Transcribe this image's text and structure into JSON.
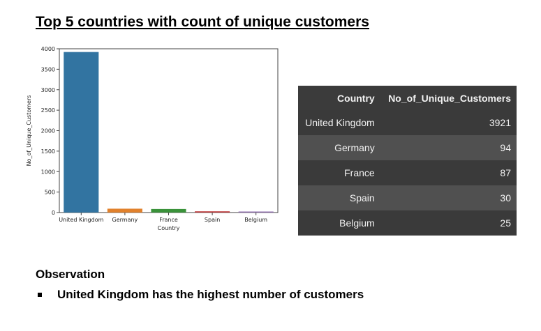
{
  "title": "Top 5 countries with count of unique customers",
  "chart_data": {
    "type": "bar",
    "categories": [
      "United Kingdom",
      "Germany",
      "France",
      "Spain",
      "Belgium"
    ],
    "values": [
      3921,
      94,
      87,
      30,
      25
    ],
    "colors": [
      "#3274a1",
      "#e1812c",
      "#3a923a",
      "#c03d3e",
      "#9372b2"
    ],
    "xlabel": "Country",
    "ylabel": "No_of_Unique_Customers",
    "ylim": [
      0,
      4000
    ],
    "yticks": [
      0,
      500,
      1000,
      1500,
      2000,
      2500,
      3000,
      3500,
      4000
    ],
    "grid": false
  },
  "table": {
    "headers": [
      "Country",
      "No_of_Unique_Customers"
    ],
    "rows": [
      {
        "country": "United Kingdom",
        "count": "3921"
      },
      {
        "country": "Germany",
        "count": "94"
      },
      {
        "country": "France",
        "count": "87"
      },
      {
        "country": "Spain",
        "count": "30"
      },
      {
        "country": "Belgium",
        "count": "25"
      }
    ]
  },
  "observation": {
    "heading": "Observation",
    "items": [
      "United Kingdom has the highest number of customers"
    ]
  }
}
